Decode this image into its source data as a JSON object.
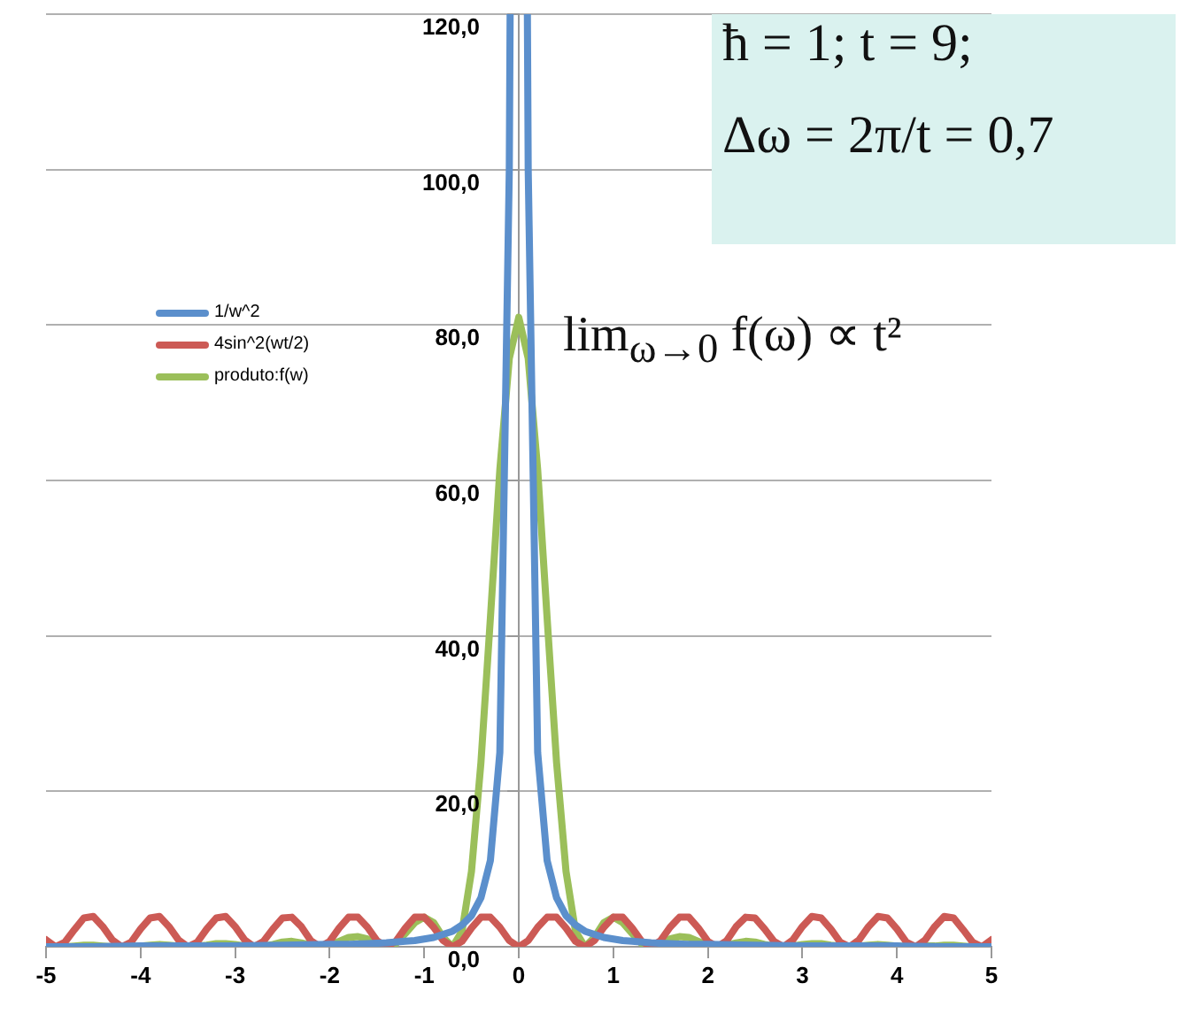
{
  "chart_data": {
    "type": "line",
    "x": [
      -5,
      -4.9,
      -4.8,
      -4.7,
      -4.6,
      -4.5,
      -4.4,
      -4.3,
      -4.2,
      -4.1,
      -4,
      -3.9,
      -3.8,
      -3.7,
      -3.6,
      -3.5,
      -3.4,
      -3.3,
      -3.2,
      -3.1,
      -3,
      -2.9,
      -2.8,
      -2.7,
      -2.6,
      -2.5,
      -2.4,
      -2.3,
      -2.2,
      -2.1,
      -2,
      -1.9,
      -1.8,
      -1.7,
      -1.6,
      -1.5,
      -1.4,
      -1.3,
      -1.2,
      -1.1,
      -1,
      -0.9,
      -0.8,
      -0.7,
      -0.6,
      -0.5,
      -0.4,
      -0.3,
      -0.2,
      -0.1,
      0,
      0.1,
      0.2,
      0.3,
      0.4,
      0.5,
      0.6,
      0.7,
      0.8,
      0.9,
      1,
      1.1,
      1.2,
      1.3,
      1.4,
      1.5,
      1.6,
      1.7,
      1.8,
      1.9,
      2,
      2.1,
      2.2,
      2.3,
      2.4,
      2.5,
      2.6,
      2.7,
      2.8,
      2.9,
      3,
      3.1,
      3.2,
      3.3,
      3.4,
      3.5,
      3.6,
      3.7,
      3.8,
      3.9,
      4,
      4.1,
      4.2,
      4.3,
      4.4,
      4.5,
      4.6,
      4.7,
      4.8,
      4.9,
      5
    ],
    "series": [
      {
        "name": "1/w^2",
        "color": "#5b8fcc",
        "x": [
          -5,
          -4.5,
          -4,
          -3.5,
          -3,
          -2.5,
          -2,
          -1.8,
          -1.6,
          -1.4,
          -1.2,
          -1.1,
          -1,
          -0.9,
          -0.8,
          -0.7,
          -0.6,
          -0.5,
          -0.4,
          -0.3,
          -0.2,
          -0.1,
          -0.0913,
          0,
          0.0913,
          0.1,
          0.2,
          0.3,
          0.4,
          0.5,
          0.6,
          0.7,
          0.8,
          0.9,
          1,
          1.1,
          1.2,
          1.4,
          1.6,
          1.8,
          2,
          2.5,
          3,
          3.5,
          4,
          4.5,
          5
        ],
        "values": [
          0,
          0,
          0.1,
          0.1,
          0.1,
          0.2,
          0.3,
          0.3,
          0.4,
          0.5,
          0.7,
          0.8,
          1,
          1.2,
          1.6,
          2,
          2.8,
          4,
          6.3,
          11.1,
          25,
          100,
          120,
          null,
          120,
          100,
          25,
          11.1,
          6.3,
          4,
          2.8,
          2,
          1.6,
          1.2,
          1,
          0.8,
          0.7,
          0.5,
          0.4,
          0.3,
          0.3,
          0.2,
          0.1,
          0.1,
          0.1,
          0,
          0
        ]
      },
      {
        "name": "4sin^2(wt/2)",
        "color": "#cc5a55",
        "values": [
          0.9,
          0,
          0.6,
          2.2,
          3.7,
          3.9,
          2.6,
          0.9,
          0,
          0.6,
          2.3,
          3.7,
          3.9,
          2.6,
          0.9,
          0,
          0.6,
          2.3,
          3.7,
          3.9,
          2.6,
          0.9,
          0,
          0.7,
          2.3,
          3.7,
          3.8,
          2.6,
          0.8,
          0,
          0.7,
          2.4,
          3.8,
          3.8,
          2.5,
          0.8,
          0,
          0.7,
          2.4,
          3.8,
          3.8,
          2.5,
          0.8,
          0,
          0.7,
          2.4,
          3.8,
          3.8,
          2.5,
          0.8,
          0,
          0.8,
          2.5,
          3.8,
          3.8,
          2.4,
          0.7,
          0,
          0.8,
          2.5,
          3.8,
          3.8,
          2.4,
          0.7,
          0,
          0.8,
          2.5,
          3.8,
          3.8,
          2.4,
          0.7,
          0,
          0.8,
          2.6,
          3.8,
          3.7,
          2.3,
          0.7,
          0,
          0.9,
          2.6,
          3.9,
          3.7,
          2.3,
          0.6,
          0,
          0.9,
          2.6,
          3.9,
          3.7,
          2.3,
          0.6,
          0,
          0.9,
          2.6,
          3.9,
          3.7,
          2.2,
          0.6,
          0,
          0.9
        ]
      },
      {
        "name": "produto:f(w)",
        "color": "#9bbf5a",
        "values": [
          0,
          0,
          0,
          0.1,
          0.2,
          0.2,
          0.1,
          0,
          0,
          0,
          0.1,
          0.2,
          0.3,
          0.2,
          0.1,
          0,
          0.1,
          0.2,
          0.4,
          0.4,
          0.3,
          0.1,
          0,
          0.1,
          0.3,
          0.6,
          0.7,
          0.5,
          0.2,
          0,
          0.2,
          0.7,
          1.2,
          1.3,
          1,
          0.4,
          0,
          0.4,
          1.7,
          3.1,
          3.8,
          3.1,
          1.2,
          0,
          2,
          9.7,
          23.7,
          42.3,
          61.4,
          75.7,
          81,
          75.7,
          61.4,
          42.3,
          23.7,
          9.7,
          2,
          0,
          1.2,
          3.1,
          3.8,
          3.1,
          1.7,
          0.4,
          0,
          0.4,
          1,
          1.3,
          1.2,
          0.7,
          0.2,
          0,
          0.2,
          0.5,
          0.7,
          0.6,
          0.3,
          0.1,
          0,
          0.1,
          0.3,
          0.4,
          0.4,
          0.2,
          0.1,
          0,
          0.1,
          0.2,
          0.3,
          0.2,
          0.1,
          0,
          0,
          0.1,
          0.1,
          0.2,
          0.2,
          0.1,
          0,
          0,
          0
        ]
      }
    ],
    "xlim": [
      -5,
      5
    ],
    "xticks": [
      -5,
      -4,
      -3,
      -2,
      -1,
      0,
      1,
      2,
      3,
      4,
      5
    ],
    "ylim": [
      0,
      120
    ],
    "yticks": [
      {
        "value": 0,
        "label": "0,0"
      },
      {
        "value": 20,
        "label": "20,0"
      },
      {
        "value": 40,
        "label": "40,0"
      },
      {
        "value": 60,
        "label": "60,0"
      },
      {
        "value": 80,
        "label": "80,0"
      },
      {
        "value": 100,
        "label": "100,0"
      },
      {
        "value": 120,
        "label": "120,0"
      }
    ],
    "grid": "y",
    "legend": "left",
    "marker": "none",
    "line_style": "solid",
    "annotations": [
      "ħ = 1;  t = 9;",
      "Δω = 2π/t = 0,7",
      "lim$_{ω→0}$ f(ω) ∝ t²"
    ]
  }
}
